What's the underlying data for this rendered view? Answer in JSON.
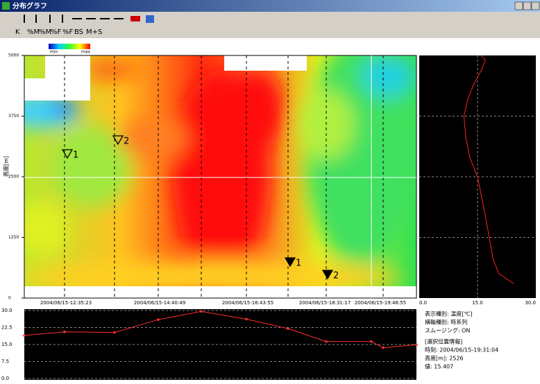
{
  "window": {
    "title": "分布グラフ"
  },
  "toolbar": [
    "K",
    "%M",
    "%M",
    "%F",
    "%F",
    "BS",
    "M+",
    "S"
  ],
  "colorbar": {
    "min": "min",
    "max": "max"
  },
  "heatmap": {
    "y_label": "高度[m]",
    "ylim": [
      0,
      5000
    ],
    "yticks": [
      0,
      1250,
      2500,
      3750,
      5000
    ],
    "x_labels": [
      "2004/06/15-12:35:23",
      "2004/06/15-14:40:49",
      "2004/06/15-16:43:55",
      "2004/06/15-18:31:17",
      "2004/06/15-19:48:55"
    ],
    "markers": [
      {
        "label": "1",
        "filled": false
      },
      {
        "label": "2",
        "filled": false
      },
      {
        "label": "1",
        "filled": true
      },
      {
        "label": "2",
        "filled": true
      }
    ]
  },
  "profile": {
    "type": "line",
    "color": "#ff2020",
    "xlim": [
      0,
      30
    ],
    "xticks": [
      {
        "value": 0,
        "label": "0.0"
      },
      {
        "value": 15,
        "label": "15.0"
      },
      {
        "value": 30,
        "label": "30.0"
      }
    ],
    "ylim": [
      0,
      5000
    ],
    "yticks": [
      1250,
      2500,
      3750
    ],
    "x": [
      24.3,
      20.5,
      19.0,
      18.0,
      17.0,
      16.0,
      15.0,
      13.0,
      12.0,
      11.5,
      12.5,
      14.0,
      16.0,
      17.0,
      16.0
    ],
    "y": [
      300,
      500,
      800,
      1250,
      1700,
      2100,
      2500,
      2900,
      3300,
      3750,
      4100,
      4400,
      4700,
      4900,
      5000
    ]
  },
  "timeseries": {
    "type": "line",
    "color": "#ff3030",
    "ylim": [
      0,
      30
    ],
    "yticks": [
      {
        "value": 0,
        "label": "0.0"
      },
      {
        "value": 7.5,
        "label": "7.5"
      },
      {
        "value": 15,
        "label": "15.0"
      },
      {
        "value": 22.5,
        "label": "22.5"
      },
      {
        "value": 30,
        "label": "30.0"
      }
    ],
    "values": [
      19.0,
      20.6,
      20.3,
      26.0,
      29.6,
      26.2,
      22.0,
      16.3,
      16.3,
      13.6,
      14.9
    ]
  },
  "info": [
    "表示種別: 温度[℃]",
    "横軸種別: 時系列",
    "スムージング: ON",
    "[選択位置情報]",
    "時刻: 2004/06/15-19:31:04",
    "高度[m]: 2526",
    "値: 15.407"
  ]
}
